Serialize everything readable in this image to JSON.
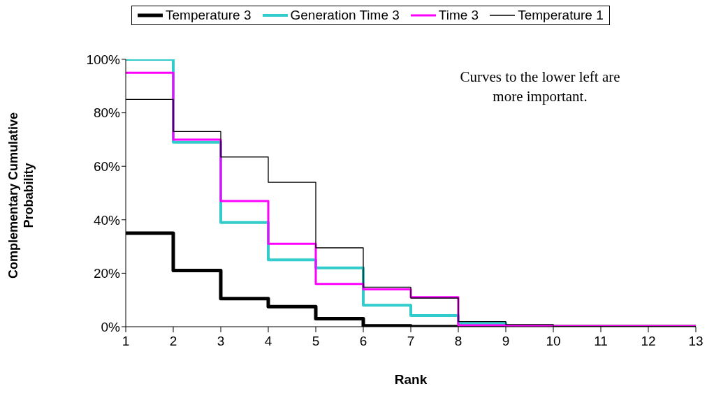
{
  "chart_data": {
    "type": "step",
    "xlabel": "Rank",
    "ylabel": "Complementary Cumulative Probability",
    "x": [
      1,
      2,
      3,
      4,
      5,
      6,
      7,
      8,
      9,
      10,
      11,
      12,
      13
    ],
    "series": [
      {
        "name": "Temperature 3",
        "color": "#000000",
        "values": [
          35,
          21,
          10.5,
          7.5,
          3,
          0.3,
          0,
          0,
          0,
          0,
          0,
          0,
          0
        ]
      },
      {
        "name": "Generation Time 3",
        "color": "#33cccc",
        "values": [
          100,
          69,
          39,
          25,
          22,
          8,
          4.2,
          1.3,
          0,
          0,
          null,
          null,
          null
        ]
      },
      {
        "name": "Time 3",
        "color": "#ff00ff",
        "values": [
          95,
          70,
          47,
          31,
          16,
          14,
          11,
          0.5,
          0.3,
          0.2,
          0.2,
          0.2,
          0.2
        ]
      },
      {
        "name": "Temperature 1",
        "color": "#000000",
        "values": [
          85,
          73,
          63.5,
          54,
          29.5,
          14.8,
          10.7,
          1.9,
          0.8,
          0,
          0,
          0,
          0
        ]
      }
    ],
    "xlim": [
      1,
      13
    ],
    "xticks": [
      1,
      2,
      3,
      4,
      5,
      6,
      7,
      8,
      9,
      10,
      11,
      12,
      13
    ],
    "ylim": [
      0,
      100
    ],
    "yticks": [
      {
        "value": 0,
        "label": "0%"
      },
      {
        "value": 20,
        "label": "20%"
      },
      {
        "value": 40,
        "label": "40%"
      },
      {
        "value": 60,
        "label": "60%"
      },
      {
        "value": 80,
        "label": "80%"
      },
      {
        "value": 100,
        "label": "100%"
      }
    ],
    "legend": "top",
    "grid": false,
    "marker": "none",
    "line_style": "solid",
    "annotations": [
      "Curves to the lower left are more important."
    ]
  }
}
